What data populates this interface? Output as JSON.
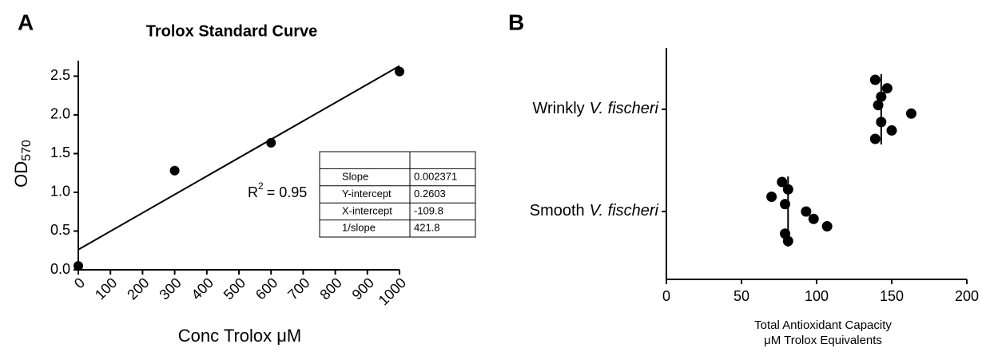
{
  "panels": [
    "A",
    "B"
  ],
  "chart_data": [
    {
      "type": "scatter",
      "title": "Trolox Standard Curve",
      "xlabel": "Conc Trolox μM",
      "ylabel": {
        "text": "OD",
        "sub": "570"
      },
      "x": [
        0,
        300,
        600,
        1000
      ],
      "values": [
        0.05,
        1.28,
        1.64,
        2.56
      ],
      "color": "#000000",
      "xlim": [
        0,
        1000
      ],
      "xticks": [
        0,
        100,
        200,
        300,
        400,
        500,
        600,
        700,
        800,
        900,
        1000
      ],
      "ylim": [
        0,
        2.7
      ],
      "yticks": [
        {
          "value": 0,
          "label": "0.0"
        },
        0.5,
        {
          "value": 1,
          "label": "1.0"
        },
        1.5,
        {
          "value": 2,
          "label": "2.0"
        },
        2.5
      ],
      "annotation": {
        "text": "R",
        "sup": "2",
        "rest": "= 0.95"
      },
      "table": {
        "rows": [
          [
            "Slope",
            0.002371
          ],
          [
            "Y-intercept",
            0.2603
          ],
          [
            "X-intercept",
            -109.8
          ],
          [
            "1/slope",
            421.8
          ]
        ]
      }
    },
    {
      "type": "dotplot",
      "categories": [
        {
          "label": "Wrinkly",
          "species": "V. fischeri"
        },
        {
          "label": "Smooth",
          "species": "V. fischeri"
        }
      ],
      "values": [
        [
          139,
          147,
          143,
          141,
          163,
          143,
          150,
          139
        ],
        [
          77,
          81,
          70,
          79,
          93,
          98,
          107,
          79,
          81
        ]
      ],
      "medians": [
        143,
        81
      ],
      "color": "#000000",
      "xlabel": [
        "Total Antioxidant Capacity",
        "μM Trolox Equivalents"
      ],
      "xlim": [
        0,
        200
      ],
      "xticks": [
        0,
        50,
        100,
        150,
        200
      ]
    }
  ]
}
